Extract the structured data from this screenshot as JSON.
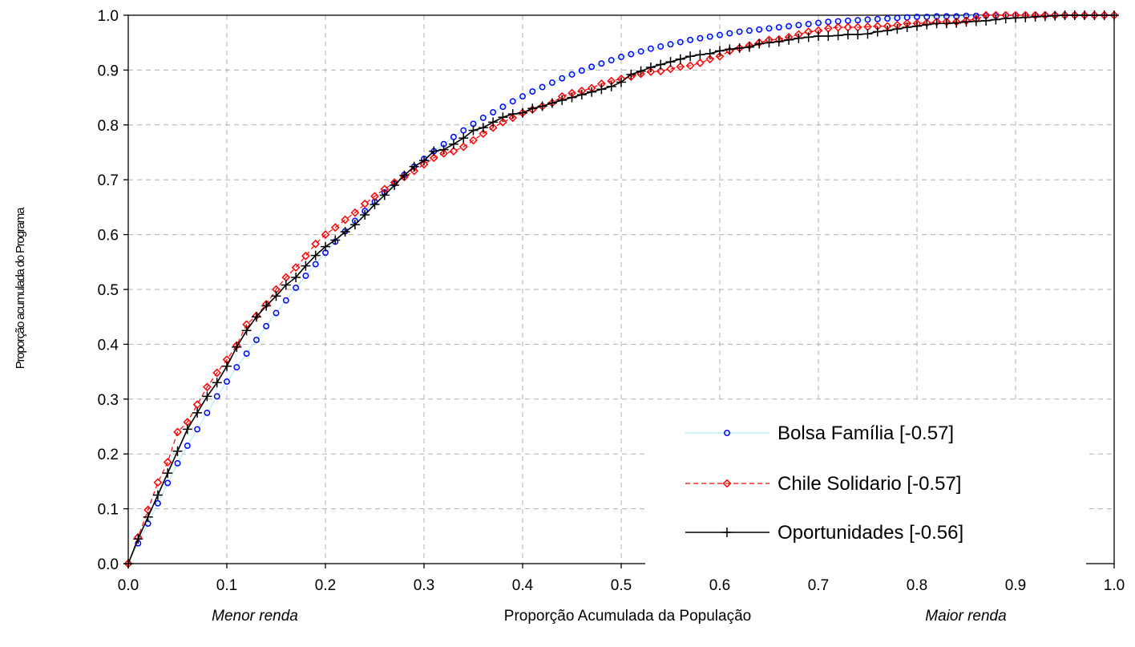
{
  "chart_data": {
    "type": "line",
    "title": "",
    "xlabel": "Proporção Acumulada da População",
    "xlabel_left": "Menor renda",
    "xlabel_right": "Maior renda",
    "ylabel": "Proporção acumulada do Programa",
    "xlim": [
      0,
      1
    ],
    "ylim": [
      0,
      1
    ],
    "xticks": [
      "0.0",
      "0.1",
      "0.2",
      "0.3",
      "0.4",
      "0.5",
      "0.6",
      "0.7",
      "0.8",
      "0.9",
      "1.0"
    ],
    "yticks": [
      "0.0",
      "0.1",
      "0.2",
      "0.3",
      "0.4",
      "0.5",
      "0.6",
      "0.7",
      "0.8",
      "0.9",
      "1.0"
    ],
    "grid": true,
    "legend_position": "bottom-right",
    "x": [
      0.0,
      0.01,
      0.02,
      0.03,
      0.04,
      0.05,
      0.06,
      0.07,
      0.08,
      0.09,
      0.1,
      0.11,
      0.12,
      0.13,
      0.14,
      0.15,
      0.16,
      0.17,
      0.18,
      0.19,
      0.2,
      0.21,
      0.22,
      0.23,
      0.24,
      0.25,
      0.26,
      0.27,
      0.28,
      0.29,
      0.3,
      0.31,
      0.32,
      0.33,
      0.34,
      0.35,
      0.36,
      0.37,
      0.38,
      0.39,
      0.4,
      0.41,
      0.42,
      0.43,
      0.44,
      0.45,
      0.46,
      0.47,
      0.48,
      0.49,
      0.5,
      0.51,
      0.52,
      0.53,
      0.54,
      0.55,
      0.56,
      0.57,
      0.58,
      0.59,
      0.6,
      0.61,
      0.62,
      0.63,
      0.64,
      0.65,
      0.66,
      0.67,
      0.68,
      0.69,
      0.7,
      0.71,
      0.72,
      0.73,
      0.74,
      0.75,
      0.76,
      0.77,
      0.78,
      0.79,
      0.8,
      0.81,
      0.82,
      0.83,
      0.84,
      0.85,
      0.86,
      0.87,
      0.88,
      0.89,
      0.9,
      0.91,
      0.92,
      0.93,
      0.94,
      0.95,
      0.96,
      0.97,
      0.98,
      0.99,
      1.0
    ],
    "series": [
      {
        "name": "Bolsa Família [-0.57]",
        "color": "#0000ff",
        "line_color": "#aeeef4",
        "marker": "circle",
        "values": [
          0.0,
          0.037,
          0.073,
          0.11,
          0.147,
          0.183,
          0.215,
          0.245,
          0.275,
          0.305,
          0.332,
          0.358,
          0.383,
          0.408,
          0.433,
          0.457,
          0.48,
          0.503,
          0.525,
          0.546,
          0.567,
          0.587,
          0.606,
          0.625,
          0.643,
          0.66,
          0.677,
          0.693,
          0.709,
          0.724,
          0.738,
          0.752,
          0.765,
          0.778,
          0.79,
          0.802,
          0.813,
          0.823,
          0.833,
          0.843,
          0.852,
          0.861,
          0.869,
          0.877,
          0.885,
          0.892,
          0.899,
          0.906,
          0.912,
          0.918,
          0.924,
          0.929,
          0.934,
          0.939,
          0.943,
          0.947,
          0.951,
          0.955,
          0.958,
          0.961,
          0.964,
          0.967,
          0.97,
          0.972,
          0.974,
          0.976,
          0.978,
          0.98,
          0.982,
          0.984,
          0.986,
          0.988,
          0.989,
          0.99,
          0.991,
          0.992,
          0.993,
          0.994,
          0.995,
          0.996,
          0.997,
          0.997,
          0.998,
          0.998,
          0.998,
          0.999,
          0.999,
          0.999,
          0.999,
          1.0,
          1.0,
          1.0,
          1.0,
          1.0,
          1.0,
          1.0,
          1.0,
          1.0,
          1.0,
          1.0,
          1.0
        ]
      },
      {
        "name": "Chile Solidario [-0.57]",
        "color": "#ff0000",
        "line_color": "#ff0000",
        "marker": "diamond",
        "values": [
          0.0,
          0.048,
          0.098,
          0.148,
          0.185,
          0.24,
          0.258,
          0.29,
          0.322,
          0.348,
          0.372,
          0.398,
          0.436,
          0.452,
          0.473,
          0.5,
          0.522,
          0.54,
          0.561,
          0.583,
          0.6,
          0.613,
          0.627,
          0.64,
          0.656,
          0.67,
          0.683,
          0.695,
          0.705,
          0.716,
          0.728,
          0.74,
          0.748,
          0.752,
          0.76,
          0.772,
          0.784,
          0.795,
          0.805,
          0.813,
          0.822,
          0.828,
          0.834,
          0.84,
          0.852,
          0.858,
          0.862,
          0.867,
          0.875,
          0.88,
          0.884,
          0.888,
          0.893,
          0.897,
          0.898,
          0.902,
          0.906,
          0.908,
          0.913,
          0.92,
          0.925,
          0.935,
          0.94,
          0.945,
          0.95,
          0.955,
          0.956,
          0.96,
          0.965,
          0.97,
          0.972,
          0.976,
          0.978,
          0.978,
          0.978,
          0.979,
          0.98,
          0.98,
          0.982,
          0.985,
          0.985,
          0.986,
          0.988,
          0.988,
          0.988,
          0.99,
          0.993,
          1.0,
          1.0,
          1.0,
          1.0,
          1.0,
          1.0,
          1.0,
          1.0,
          1.0,
          1.0,
          1.0,
          1.0,
          1.0,
          1.0
        ]
      },
      {
        "name": "Oportunidades [-0.56]",
        "color": "#000000",
        "line_color": "#000000",
        "marker": "plus",
        "values": [
          0.0,
          0.045,
          0.085,
          0.125,
          0.165,
          0.205,
          0.245,
          0.275,
          0.305,
          0.33,
          0.36,
          0.395,
          0.425,
          0.45,
          0.47,
          0.488,
          0.508,
          0.522,
          0.543,
          0.562,
          0.578,
          0.59,
          0.605,
          0.618,
          0.636,
          0.655,
          0.672,
          0.69,
          0.708,
          0.724,
          0.735,
          0.752,
          0.755,
          0.765,
          0.776,
          0.79,
          0.795,
          0.805,
          0.814,
          0.82,
          0.822,
          0.83,
          0.834,
          0.84,
          0.845,
          0.85,
          0.855,
          0.86,
          0.865,
          0.87,
          0.878,
          0.892,
          0.898,
          0.905,
          0.91,
          0.915,
          0.92,
          0.925,
          0.928,
          0.93,
          0.935,
          0.938,
          0.94,
          0.942,
          0.948,
          0.95,
          0.952,
          0.955,
          0.958,
          0.96,
          0.962,
          0.962,
          0.963,
          0.965,
          0.965,
          0.966,
          0.97,
          0.972,
          0.975,
          0.978,
          0.98,
          0.983,
          0.985,
          0.985,
          0.986,
          0.988,
          0.989,
          0.99,
          0.992,
          0.994,
          0.995,
          0.996,
          0.997,
          0.998,
          0.999,
          1.0,
          1.0,
          1.0,
          1.0,
          1.0,
          1.0
        ]
      }
    ]
  }
}
